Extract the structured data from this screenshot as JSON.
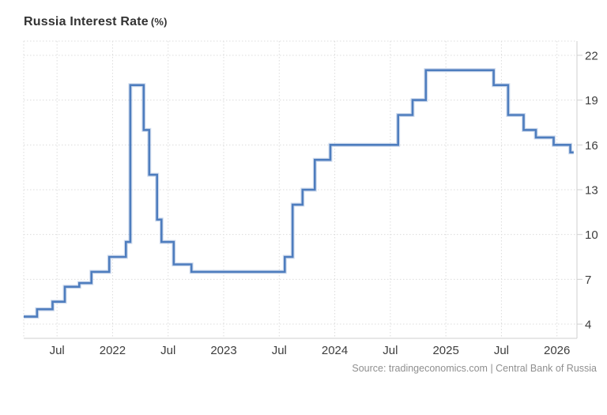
{
  "header": {
    "title_main": "Russia Interest Rate",
    "title_unit": "(%)"
  },
  "footer": {
    "source": "Source: tradingeconomics.com | Central Bank of Russia"
  },
  "chart_data": {
    "type": "line",
    "subtype": "step",
    "title": "Russia Interest Rate (%)",
    "xlabel": "",
    "ylabel": "",
    "legend": "none",
    "grid": "dotted",
    "y_axis_side": "right",
    "xlim": [
      2021.2,
      2026.18
    ],
    "ylim": [
      3.05,
      22.95
    ],
    "y_ticks": [
      4,
      7,
      10,
      13,
      16,
      19,
      22
    ],
    "x_ticks": [
      {
        "t": 2021.5,
        "label": "Jul"
      },
      {
        "t": 2022.0,
        "label": "2022"
      },
      {
        "t": 2022.5,
        "label": "Jul"
      },
      {
        "t": 2023.0,
        "label": "2023"
      },
      {
        "t": 2023.5,
        "label": "Jul"
      },
      {
        "t": 2024.0,
        "label": "2024"
      },
      {
        "t": 2024.5,
        "label": "Jul"
      },
      {
        "t": 2025.0,
        "label": "2025"
      },
      {
        "t": 2025.5,
        "label": "Jul"
      },
      {
        "t": 2026.0,
        "label": "2026"
      }
    ],
    "steps": [
      {
        "date": "2021-03",
        "t": 2021.2,
        "v": 4.5
      },
      {
        "date": "2021-04",
        "t": 2021.32,
        "v": 5.0
      },
      {
        "date": "2021-06",
        "t": 2021.46,
        "v": 5.5
      },
      {
        "date": "2021-07",
        "t": 2021.57,
        "v": 6.5
      },
      {
        "date": "2021-09",
        "t": 2021.7,
        "v": 6.75
      },
      {
        "date": "2021-10",
        "t": 2021.81,
        "v": 7.5
      },
      {
        "date": "2021-12",
        "t": 2021.97,
        "v": 8.5
      },
      {
        "date": "2022-02",
        "t": 2022.12,
        "v": 9.5
      },
      {
        "date": "2022-02",
        "t": 2022.16,
        "v": 20.0
      },
      {
        "date": "2022-04",
        "t": 2022.28,
        "v": 17.0
      },
      {
        "date": "2022-04",
        "t": 2022.33,
        "v": 14.0
      },
      {
        "date": "2022-05",
        "t": 2022.4,
        "v": 11.0
      },
      {
        "date": "2022-06",
        "t": 2022.44,
        "v": 9.5
      },
      {
        "date": "2022-07",
        "t": 2022.55,
        "v": 8.0
      },
      {
        "date": "2022-09",
        "t": 2022.71,
        "v": 7.5
      },
      {
        "date": "2023-07",
        "t": 2023.55,
        "v": 8.5
      },
      {
        "date": "2023-08",
        "t": 2023.62,
        "v": 12.0
      },
      {
        "date": "2023-09",
        "t": 2023.71,
        "v": 13.0
      },
      {
        "date": "2023-10",
        "t": 2023.82,
        "v": 15.0
      },
      {
        "date": "2023-12",
        "t": 2023.96,
        "v": 16.0
      },
      {
        "date": "2024-07",
        "t": 2024.57,
        "v": 18.0
      },
      {
        "date": "2024-09",
        "t": 2024.7,
        "v": 19.0
      },
      {
        "date": "2024-10",
        "t": 2024.82,
        "v": 21.0
      },
      {
        "date": "2025-06",
        "t": 2025.43,
        "v": 20.0
      },
      {
        "date": "2025-07",
        "t": 2025.56,
        "v": 18.0
      },
      {
        "date": "2025-09",
        "t": 2025.7,
        "v": 17.0
      },
      {
        "date": "2025-10",
        "t": 2025.81,
        "v": 16.5
      },
      {
        "date": "2025-12",
        "t": 2025.97,
        "v": 16.0
      },
      {
        "date": "2026-02",
        "t": 2026.12,
        "v": 15.5
      }
    ],
    "t_end": 2026.15,
    "colors": {
      "line": "#4e7dbe",
      "line_halo": "#a9c0e0",
      "grid": "#dcdcdc",
      "axis": "#cfcfcf",
      "tick_label": "#3d3d3d",
      "title": "#333333",
      "source": "#8f8f8f",
      "background": "#ffffff"
    }
  }
}
